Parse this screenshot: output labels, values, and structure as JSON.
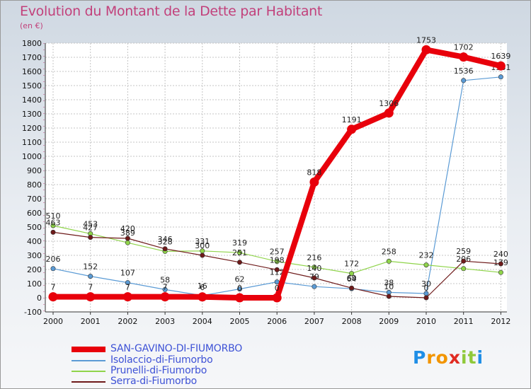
{
  "title": "Evolution du Montant de la Dette par Habitant",
  "subtitle": "(en €)",
  "logo": {
    "letters": [
      "P",
      "r",
      "o",
      "x",
      "i",
      "t",
      "i"
    ],
    "colors": [
      "#1f8ee6",
      "#f29500",
      "#f29500",
      "#e02b22",
      "#8fc93a",
      "#8fc93a",
      "#1f8ee6"
    ]
  },
  "chart_data": {
    "type": "line",
    "x": [
      "2000",
      "2001",
      "2002",
      "2003",
      "2004",
      "2005",
      "2006",
      "2007",
      "2008",
      "2009",
      "2010",
      "2011",
      "2012"
    ],
    "ylim": [
      -100,
      1800
    ],
    "yticks": [
      -100,
      0,
      100,
      200,
      300,
      400,
      500,
      600,
      700,
      800,
      900,
      1000,
      1100,
      1200,
      1300,
      1400,
      1500,
      1600,
      1700,
      1800
    ],
    "grid": true,
    "legend_position": "bottom-left",
    "series": [
      {
        "name": "SAN-GAVINO-DI-FIUMORBO",
        "color": "#e8000b",
        "values": [
          7,
          7,
          7,
          7,
          6,
          0,
          0,
          818,
          1191,
          1306,
          1753,
          1702,
          1639
        ],
        "labels": [
          "7",
          "7",
          "7",
          "7",
          "6",
          "0",
          "0",
          "818",
          "1191",
          "1306",
          "1753",
          "1702",
          "1639"
        ],
        "emphasis": true
      },
      {
        "name": "Isolaccio-di-Fiumorbo",
        "color": "#5b9bd5",
        "values": [
          206,
          152,
          107,
          58,
          16,
          62,
          112,
          79,
          64,
          38,
          30,
          1536,
          1561
        ],
        "labels": [
          "206",
          "152",
          "107",
          "58",
          "16",
          "62",
          "112",
          "79",
          "64",
          "38",
          "30",
          "1536",
          "1561"
        ]
      },
      {
        "name": "Prunelli-di-Fiumorbo",
        "color": "#8fd44a",
        "values": [
          510,
          453,
          389,
          328,
          331,
          319,
          257,
          216,
          172,
          258,
          232,
          206,
          179
        ],
        "labels": [
          "510",
          "453",
          "389",
          "328",
          "331",
          "319",
          "257",
          "216",
          "172",
          "258",
          "232",
          "206",
          "179"
        ]
      },
      {
        "name": "Serra-di-Fiumorbo",
        "color": "#6e1a1a",
        "values": [
          463,
          427,
          420,
          346,
          300,
          251,
          198,
          140,
          69,
          10,
          0,
          259,
          240
        ],
        "labels": [
          "463",
          "427",
          "420",
          "346",
          "300",
          "251",
          "198",
          "140",
          "69",
          "10",
          "0",
          "259",
          "240"
        ]
      }
    ]
  }
}
